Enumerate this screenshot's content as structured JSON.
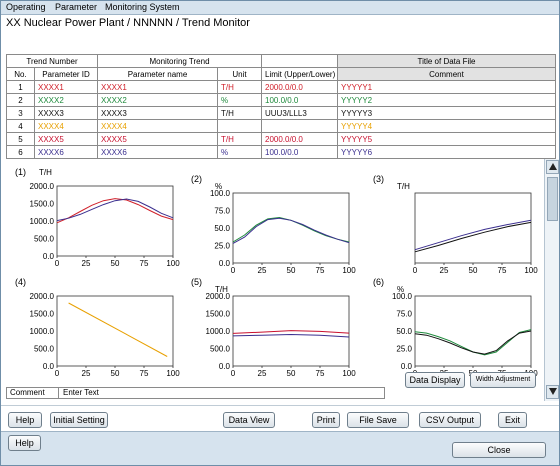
{
  "menubar": {
    "items": [
      "Operating",
      "Parameter",
      "Monitoring System"
    ]
  },
  "title": "XX Nuclear Power Plant / NNNNN / Trend Monitor",
  "table": {
    "group_headers": {
      "trend_number": "Trend Number",
      "monitoring_trend": "Monitoring Trend",
      "title_of_data_file": "Title of Data File"
    },
    "columns": {
      "no": "No.",
      "parameter_id": "Parameter ID",
      "parameter_name": "Parameter name",
      "unit": "Unit",
      "limit": "Limit (Upper/Lower)",
      "comment": "Comment"
    },
    "rows": [
      {
        "no": "1",
        "parameter_id": "XXXX1",
        "parameter_name": "XXXX1",
        "unit": "T/H",
        "limit": "2000.0/0.0",
        "comment": "YYYYY1",
        "color": "#d0202a"
      },
      {
        "no": "2",
        "parameter_id": "XXXX2",
        "parameter_name": "XXXX2",
        "unit": "%",
        "limit": "100.0/0.0",
        "comment": "YYYYY2",
        "color": "#1e8a3c"
      },
      {
        "no": "3",
        "parameter_id": "XXXX3",
        "parameter_name": "XXXX3",
        "unit": "T/H",
        "limit": "UUU3/LLL3",
        "comment": "YYYYY3",
        "color": "#111111"
      },
      {
        "no": "4",
        "parameter_id": "XXXX4",
        "parameter_name": "XXXX4",
        "unit": "",
        "limit": "",
        "comment": "YYYYY4",
        "color": "#e8a000"
      },
      {
        "no": "5",
        "parameter_id": "XXXX5",
        "parameter_name": "XXXX5",
        "unit": "T/H",
        "limit": "2000.0/0.0",
        "comment": "YYYYY5",
        "color": "#c8102e"
      },
      {
        "no": "6",
        "parameter_id": "XXXX6",
        "parameter_name": "XXXX6",
        "unit": "%",
        "limit": "100.0/0.0",
        "comment": "YYYYY6",
        "color": "#3b2f8f"
      }
    ]
  },
  "chart_data": [
    {
      "type": "line",
      "label": "(1)",
      "unit": "T/H",
      "xlim": [
        0,
        100
      ],
      "ylim": [
        0,
        2000
      ],
      "xticks": [
        "0",
        "25",
        "50",
        "75",
        "100"
      ],
      "yticks": [
        "0.0",
        "500.0",
        "1000.0",
        "1500.0",
        "2000.0"
      ],
      "series": [
        {
          "color": "#d0202a",
          "x": [
            0,
            10,
            20,
            30,
            40,
            50,
            60,
            70,
            80,
            90,
            100
          ],
          "y": [
            950,
            1090,
            1270,
            1450,
            1580,
            1640,
            1600,
            1470,
            1300,
            1140,
            1040
          ]
        },
        {
          "color": "#3b2f8f",
          "x": [
            0,
            10,
            20,
            30,
            40,
            50,
            60,
            70,
            80,
            90,
            100
          ],
          "y": [
            1010,
            1080,
            1190,
            1330,
            1470,
            1580,
            1630,
            1560,
            1400,
            1220,
            1090
          ]
        }
      ]
    },
    {
      "type": "line",
      "label": "(2)",
      "unit": "%",
      "xlim": [
        0,
        100
      ],
      "ylim": [
        0,
        100
      ],
      "xticks": [
        "0",
        "25",
        "50",
        "75",
        "100"
      ],
      "yticks": [
        "0.0",
        "25.0",
        "50.0",
        "75.0",
        "100.0"
      ],
      "series": [
        {
          "color": "#1e8a3c",
          "x": [
            0,
            10,
            20,
            30,
            40,
            50,
            60,
            70,
            80,
            90,
            100
          ],
          "y": [
            30,
            40,
            54,
            63,
            65,
            61,
            54,
            46,
            39,
            34,
            30
          ]
        },
        {
          "color": "#3b2f8f",
          "x": [
            0,
            10,
            20,
            30,
            40,
            50,
            60,
            70,
            80,
            90,
            100
          ],
          "y": [
            28,
            37,
            52,
            62,
            64,
            61,
            55,
            47,
            40,
            34,
            29
          ]
        }
      ]
    },
    {
      "type": "line",
      "label": "(3)",
      "unit": "T/H",
      "xlim": [
        0,
        100
      ],
      "ylim": [
        0,
        100
      ],
      "xticks": [
        "0",
        "25",
        "50",
        "75",
        "100"
      ],
      "yticks": [],
      "series": [
        {
          "color": "#111111",
          "x": [
            0,
            20,
            40,
            60,
            80,
            100
          ],
          "y": [
            16,
            25,
            35,
            44,
            52,
            58
          ]
        },
        {
          "color": "#3b2f8f",
          "x": [
            0,
            20,
            40,
            60,
            80,
            100
          ],
          "y": [
            19,
            29,
            39,
            48,
            55,
            61
          ]
        }
      ]
    },
    {
      "type": "line",
      "label": "(4)",
      "unit": "",
      "xlim": [
        0,
        100
      ],
      "ylim": [
        0,
        2000
      ],
      "xticks": [
        "0",
        "25",
        "50",
        "75",
        "100"
      ],
      "yticks": [
        "0.0",
        "500.0",
        "1000.0",
        "1500.0",
        "2000.0"
      ],
      "series": [
        {
          "color": "#e8a000",
          "x": [
            10,
            95
          ],
          "y": [
            1800,
            270
          ]
        }
      ]
    },
    {
      "type": "line",
      "label": "(5)",
      "unit": "T/H",
      "xlim": [
        0,
        100
      ],
      "ylim": [
        0,
        2000
      ],
      "xticks": [
        "0",
        "25",
        "50",
        "75",
        "100"
      ],
      "yticks": [
        "0.0",
        "500.0",
        "1000.0",
        "1500.0",
        "2000.0"
      ],
      "series": [
        {
          "color": "#c8102e",
          "x": [
            0,
            25,
            50,
            75,
            100
          ],
          "y": [
            930,
            970,
            1010,
            990,
            940
          ]
        },
        {
          "color": "#3b2f8f",
          "x": [
            0,
            25,
            50,
            75,
            100
          ],
          "y": [
            860,
            880,
            900,
            880,
            830
          ]
        }
      ]
    },
    {
      "type": "line",
      "label": "(6)",
      "unit": "%",
      "xlim": [
        0,
        100
      ],
      "ylim": [
        0,
        100
      ],
      "xticks": [
        "0",
        "25",
        "50",
        "75",
        "100"
      ],
      "yticks": [
        "0.0",
        "25.0",
        "50.0",
        "75.0",
        "100.0"
      ],
      "series": [
        {
          "color": "#1e8a3c",
          "x": [
            0,
            10,
            20,
            30,
            40,
            50,
            60,
            70,
            80,
            90,
            100
          ],
          "y": [
            49,
            47,
            42,
            36,
            28,
            20,
            16,
            20,
            34,
            48,
            52
          ]
        },
        {
          "color": "#111111",
          "x": [
            0,
            10,
            20,
            30,
            40,
            50,
            60,
            70,
            80,
            90,
            100
          ],
          "y": [
            46,
            44,
            39,
            33,
            26,
            20,
            17,
            22,
            36,
            47,
            50
          ]
        }
      ]
    }
  ],
  "side_buttons": {
    "data_display": "Data Display",
    "width_adjustment": "Width Adjustment"
  },
  "comment": {
    "label": "Comment",
    "text": "Enter Text"
  },
  "toolbar": {
    "help": "Help",
    "initial_setting": "Initial Setting",
    "data_view": "Data View",
    "print": "Print",
    "file_save": "File Save",
    "csv_output": "CSV Output",
    "exit": "Exit"
  },
  "bottom": {
    "help": "Help",
    "close": "Close"
  }
}
